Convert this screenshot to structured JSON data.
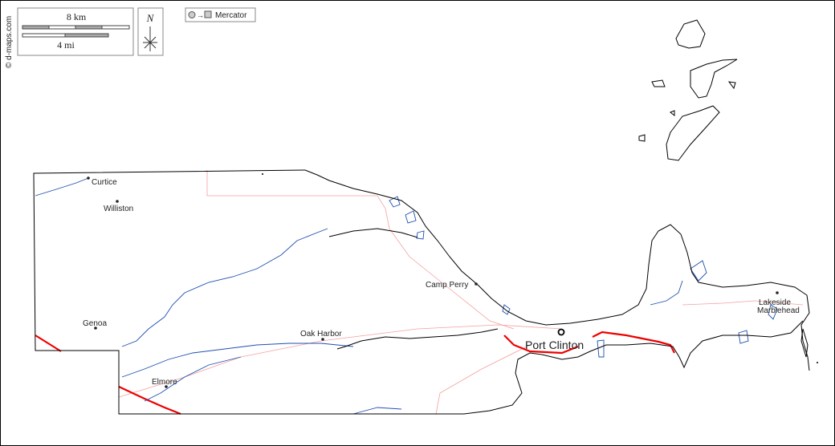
{
  "credit": "© d-maps.com",
  "scale": {
    "km": "8 km",
    "mi": "4 mi"
  },
  "north": "N",
  "projection": "Mercator",
  "places": {
    "curtice": "Curtice",
    "williston": "Williston",
    "genoa": "Genoa",
    "oak_harbor": "Oak Harbor",
    "camp_perry": "Camp Perry",
    "elmore": "Elmore",
    "port_clinton": "Port Clinton",
    "lakeside": "Lakeside",
    "marblehead": "Marblehead"
  }
}
